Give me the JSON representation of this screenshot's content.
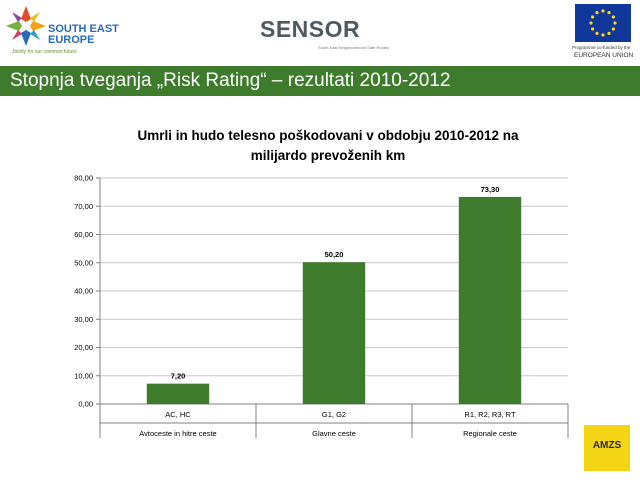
{
  "header": {
    "see_logo": {
      "line1": "SOUTH EAST",
      "line2": "EUROPE",
      "tagline": "Jointly for our common future",
      "icon": "see-star-icon"
    },
    "sensor_logo": {
      "wordmark": "SENSOR",
      "subtitle": "South East Neighbourhood Safe Routes",
      "icon": "sensor-wordmark-icon"
    },
    "eu_logo": {
      "note": "Programme co-funded by the",
      "name": "EUROPEAN UNION",
      "icon": "eu-flag-icon"
    }
  },
  "slide": {
    "title": "Stopnja tveganja „Risk Rating“ – rezultati 2010-2012"
  },
  "colors": {
    "title_bar": "#3e7b2c",
    "bar": "#3e7b2c",
    "gridline": "#c8c8c8",
    "axis": "#808080"
  },
  "chart_data": {
    "type": "bar",
    "title_lines": [
      "Umrli in hudo telesno poškodovani v obdobju 2010-2012 na",
      "milijardo prevoženih km"
    ],
    "categories": [
      {
        "label": "AC, HC",
        "group": "Avtoceste in hitre ceste"
      },
      {
        "label": "G1, G2",
        "group": "Glavne ceste"
      },
      {
        "label": "R1, R2, R3, RT",
        "group": "Regionale ceste"
      }
    ],
    "values": [
      7.2,
      50.2,
      73.3
    ],
    "data_labels": [
      "7,20",
      "50,20",
      "73,30"
    ],
    "ylim": [
      0,
      80
    ],
    "yticks": [
      "0,00",
      "10,00",
      "20,00",
      "30,00",
      "40,00",
      "50,00",
      "60,00",
      "70,00",
      "80,00"
    ],
    "grid": true,
    "legend": "none"
  },
  "footer": {
    "amzs_logo": "AMZS"
  }
}
